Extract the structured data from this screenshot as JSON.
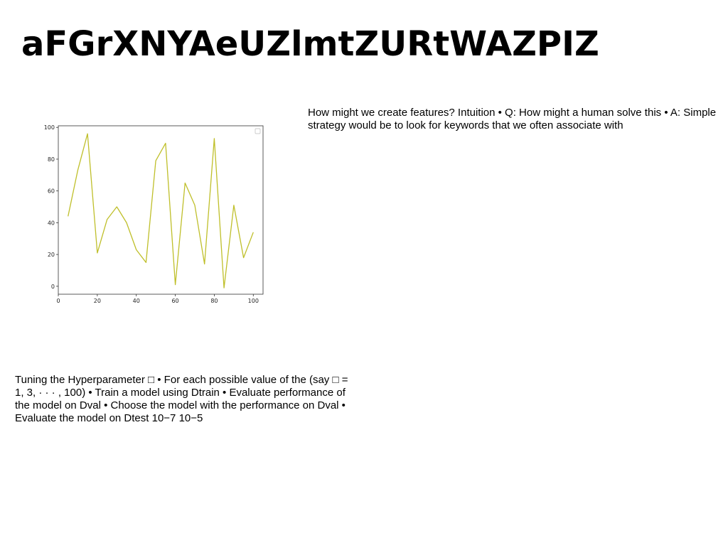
{
  "page": {
    "title": "aFGrXNYAeUZlmtZURtWAZPIZ",
    "para_right": "How might we create features? Intuition • Q: How might a human solve this • A: Simple strategy would be to look for keywords that we often associate with",
    "para_left": "Tuning the Hyperparameter □ • For each possible value of the (say □ = 1, 3, · · · , 100) • Train a model using Dtrain • Evaluate performance of the model on Dval • Choose the model with the performance on Dval • Evaluate the model on Dtest 10−7 10−5"
  },
  "chart_data": {
    "type": "line",
    "title": "",
    "xlabel": "",
    "ylabel": "",
    "xlim": [
      0,
      105
    ],
    "ylim": [
      -5,
      101
    ],
    "xticks": [
      0,
      20,
      40,
      60,
      80,
      100
    ],
    "yticks": [
      0,
      20,
      40,
      60,
      80,
      100
    ],
    "grid": false,
    "legend": "top-right",
    "series": [
      {
        "color": "#bfbf2a",
        "x": [
          5,
          10,
          15,
          20,
          25,
          30,
          35,
          40,
          45,
          50,
          55,
          60,
          65,
          70,
          75,
          80,
          85,
          90,
          95,
          100
        ],
        "y": [
          44,
          73,
          96,
          21,
          42,
          50,
          40,
          23,
          15,
          79,
          90,
          1,
          65,
          51,
          14,
          93,
          -1,
          51,
          18,
          34
        ]
      }
    ]
  }
}
